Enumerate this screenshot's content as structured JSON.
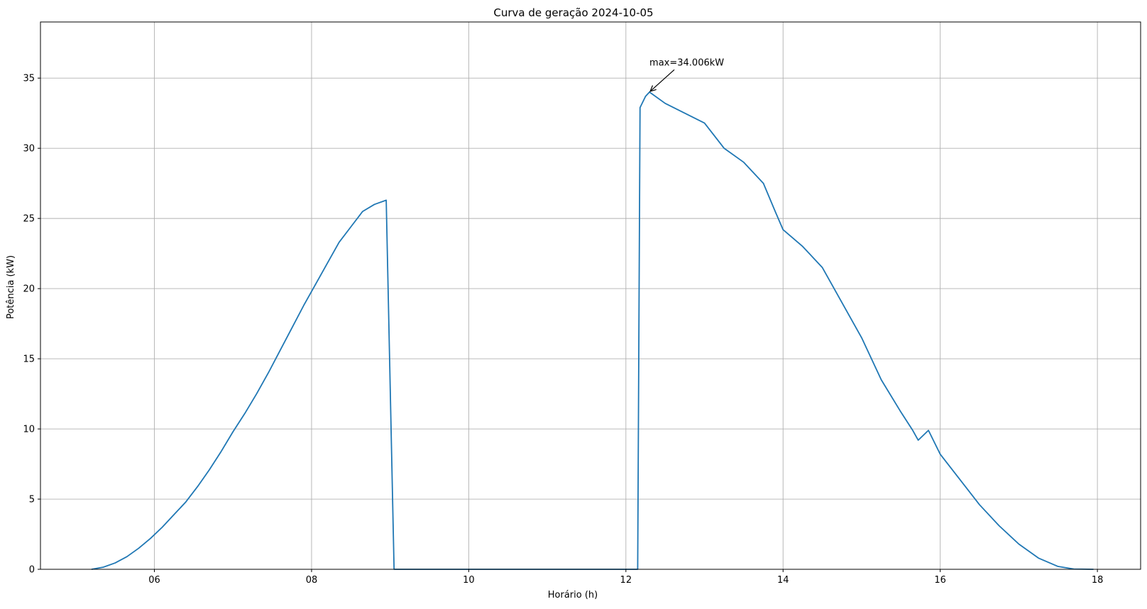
{
  "chart_data": {
    "type": "line",
    "title": "Curva de geração 2024-10-05",
    "xlabel": "Horário (h)",
    "ylabel": "Potência (kW)",
    "xlim": [
      4.55,
      18.55
    ],
    "ylim": [
      0,
      39
    ],
    "x_ticks": [
      6,
      8,
      10,
      12,
      14,
      16,
      18
    ],
    "x_tick_labels": [
      "06",
      "08",
      "10",
      "12",
      "14",
      "16",
      "18"
    ],
    "y_ticks": [
      0,
      5,
      10,
      15,
      20,
      25,
      30,
      35
    ],
    "y_tick_labels": [
      "0",
      "5",
      "10",
      "15",
      "20",
      "25",
      "30",
      "35"
    ],
    "grid": true,
    "colors": {
      "line": "#1f77b4",
      "grid": "#b0b0b0"
    },
    "annotation": {
      "text": "max=34.006kW",
      "x": 12.3,
      "y": 34.006,
      "text_x": 12.3,
      "text_y": 35.9
    },
    "series": [
      {
        "x": [
          5.2,
          5.35,
          5.5,
          5.65,
          5.8,
          5.95,
          6.1,
          6.25,
          6.4,
          6.55,
          6.7,
          6.85,
          7.0,
          7.15,
          7.3,
          7.45,
          7.6,
          7.75,
          7.9,
          8.05,
          8.2,
          8.35,
          8.5,
          8.65,
          8.8,
          8.95,
          9.05,
          12.15,
          12.18,
          12.25,
          12.3,
          12.5,
          12.75,
          13.0,
          13.25,
          13.5,
          13.75,
          13.9,
          14.0,
          14.25,
          14.5,
          14.75,
          15.0,
          15.25,
          15.5,
          15.65,
          15.72,
          15.85,
          16.0,
          16.25,
          16.5,
          16.75,
          17.0,
          17.25,
          17.5,
          17.7,
          17.95
        ],
        "y": [
          0,
          0.15,
          0.45,
          0.9,
          1.5,
          2.2,
          3.0,
          3.9,
          4.8,
          5.9,
          7.1,
          8.4,
          9.8,
          11.1,
          12.5,
          14.0,
          15.6,
          17.2,
          18.8,
          20.3,
          21.8,
          23.3,
          24.4,
          25.5,
          26.0,
          26.3,
          0,
          0,
          32.9,
          33.7,
          34.006,
          33.2,
          32.5,
          31.8,
          30.0,
          29.0,
          27.5,
          25.5,
          24.2,
          23.0,
          21.5,
          19.0,
          16.5,
          13.5,
          11.2,
          9.9,
          9.2,
          9.9,
          8.2,
          6.4,
          4.6,
          3.1,
          1.8,
          0.8,
          0.2,
          0.02,
          0
        ]
      }
    ]
  }
}
